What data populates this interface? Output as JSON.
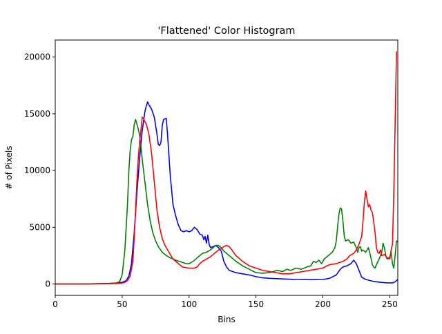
{
  "chart_data": {
    "type": "line",
    "title": "'Flattened' Color Histogram",
    "xlabel": "Bins",
    "ylabel": "# of Pixels",
    "xlim": [
      0,
      256
    ],
    "ylim": [
      -1000,
      21500
    ],
    "xticks": [
      0,
      50,
      100,
      150,
      200,
      250
    ],
    "yticks": [
      0,
      5000,
      10000,
      15000,
      20000
    ],
    "grid": false,
    "legend": "none",
    "series": [
      {
        "color": "#0000ff",
        "points": [
          [
            0,
            0
          ],
          [
            10,
            0
          ],
          [
            20,
            0
          ],
          [
            30,
            20
          ],
          [
            40,
            50
          ],
          [
            45,
            80
          ],
          [
            50,
            150
          ],
          [
            53,
            300
          ],
          [
            55,
            700
          ],
          [
            57,
            1800
          ],
          [
            59,
            4500
          ],
          [
            61,
            8000
          ],
          [
            63,
            11000
          ],
          [
            65,
            13500
          ],
          [
            67,
            15200
          ],
          [
            68,
            15700
          ],
          [
            69,
            16050
          ],
          [
            70,
            15800
          ],
          [
            72,
            15400
          ],
          [
            74,
            14700
          ],
          [
            76,
            13200
          ],
          [
            77,
            12300
          ],
          [
            78,
            12200
          ],
          [
            79,
            12500
          ],
          [
            80,
            14000
          ],
          [
            81,
            14500
          ],
          [
            83,
            14600
          ],
          [
            84,
            13000
          ],
          [
            86,
            9500
          ],
          [
            88,
            7000
          ],
          [
            90,
            6000
          ],
          [
            92,
            5200
          ],
          [
            94,
            4700
          ],
          [
            96,
            4600
          ],
          [
            98,
            4700
          ],
          [
            100,
            4600
          ],
          [
            102,
            4700
          ],
          [
            104,
            5000
          ],
          [
            106,
            4800
          ],
          [
            108,
            4400
          ],
          [
            110,
            4300
          ],
          [
            111,
            3900
          ],
          [
            112,
            4200
          ],
          [
            113,
            3600
          ],
          [
            114,
            4300
          ],
          [
            115,
            3500
          ],
          [
            116,
            3200
          ],
          [
            118,
            3300
          ],
          [
            120,
            3400
          ],
          [
            122,
            3200
          ],
          [
            124,
            2900
          ],
          [
            126,
            2000
          ],
          [
            128,
            1500
          ],
          [
            130,
            1200
          ],
          [
            135,
            1000
          ],
          [
            140,
            900
          ],
          [
            145,
            800
          ],
          [
            150,
            650
          ],
          [
            155,
            550
          ],
          [
            160,
            500
          ],
          [
            170,
            450
          ],
          [
            180,
            400
          ],
          [
            190,
            380
          ],
          [
            200,
            400
          ],
          [
            205,
            500
          ],
          [
            210,
            800
          ],
          [
            213,
            1300
          ],
          [
            215,
            1500
          ],
          [
            218,
            1600
          ],
          [
            221,
            1800
          ],
          [
            223,
            2100
          ],
          [
            225,
            1800
          ],
          [
            227,
            1200
          ],
          [
            229,
            600
          ],
          [
            232,
            400
          ],
          [
            237,
            250
          ],
          [
            243,
            150
          ],
          [
            248,
            100
          ],
          [
            252,
            100
          ],
          [
            254,
            200
          ],
          [
            256,
            400
          ]
        ]
      },
      {
        "color": "#008000",
        "points": [
          [
            0,
            0
          ],
          [
            10,
            0
          ],
          [
            20,
            0
          ],
          [
            30,
            20
          ],
          [
            40,
            40
          ],
          [
            45,
            80
          ],
          [
            48,
            200
          ],
          [
            50,
            800
          ],
          [
            52,
            3000
          ],
          [
            54,
            7000
          ],
          [
            55,
            10000
          ],
          [
            56,
            11800
          ],
          [
            57,
            12700
          ],
          [
            58,
            13000
          ],
          [
            59,
            14000
          ],
          [
            60,
            14500
          ],
          [
            61,
            14100
          ],
          [
            62,
            13700
          ],
          [
            63,
            13100
          ],
          [
            64,
            12200
          ],
          [
            65,
            11000
          ],
          [
            67,
            9000
          ],
          [
            69,
            7000
          ],
          [
            71,
            5500
          ],
          [
            73,
            4500
          ],
          [
            75,
            3800
          ],
          [
            77,
            3300
          ],
          [
            80,
            2800
          ],
          [
            83,
            2500
          ],
          [
            86,
            2300
          ],
          [
            90,
            2100
          ],
          [
            95,
            1900
          ],
          [
            98,
            1800
          ],
          [
            100,
            1800
          ],
          [
            103,
            2000
          ],
          [
            106,
            2300
          ],
          [
            108,
            2500
          ],
          [
            110,
            2700
          ],
          [
            113,
            2800
          ],
          [
            116,
            3000
          ],
          [
            118,
            3200
          ],
          [
            120,
            3400
          ],
          [
            122,
            3400
          ],
          [
            124,
            3200
          ],
          [
            126,
            2900
          ],
          [
            130,
            2500
          ],
          [
            135,
            2000
          ],
          [
            140,
            1600
          ],
          [
            145,
            1300
          ],
          [
            150,
            1000
          ],
          [
            155,
            950
          ],
          [
            160,
            1000
          ],
          [
            163,
            1100
          ],
          [
            166,
            1200
          ],
          [
            170,
            1100
          ],
          [
            173,
            1300
          ],
          [
            176,
            1200
          ],
          [
            180,
            1400
          ],
          [
            184,
            1300
          ],
          [
            188,
            1500
          ],
          [
            191,
            1600
          ],
          [
            193,
            2000
          ],
          [
            195,
            1900
          ],
          [
            197,
            2100
          ],
          [
            199,
            1800
          ],
          [
            201,
            2200
          ],
          [
            203,
            2400
          ],
          [
            205,
            2600
          ],
          [
            207,
            2800
          ],
          [
            209,
            3200
          ],
          [
            210,
            3800
          ],
          [
            211,
            5000
          ],
          [
            212,
            6200
          ],
          [
            213,
            6700
          ],
          [
            214,
            6600
          ],
          [
            215,
            5500
          ],
          [
            216,
            4200
          ],
          [
            217,
            3800
          ],
          [
            219,
            3900
          ],
          [
            221,
            3600
          ],
          [
            223,
            3700
          ],
          [
            225,
            3200
          ],
          [
            226,
            2800
          ],
          [
            227,
            3200
          ],
          [
            228,
            3300
          ],
          [
            229,
            2900
          ],
          [
            230,
            3000
          ],
          [
            232,
            2800
          ],
          [
            234,
            3200
          ],
          [
            235,
            2800
          ],
          [
            237,
            1700
          ],
          [
            238,
            1500
          ],
          [
            239,
            1400
          ],
          [
            240,
            1700
          ],
          [
            242,
            2200
          ],
          [
            244,
            2800
          ],
          [
            245,
            3600
          ],
          [
            246,
            3200
          ],
          [
            247,
            2500
          ],
          [
            248,
            2200
          ],
          [
            250,
            2400
          ],
          [
            251,
            2800
          ],
          [
            252,
            1800
          ],
          [
            253,
            1400
          ],
          [
            254,
            2500
          ],
          [
            255,
            3800
          ],
          [
            256,
            3700
          ]
        ]
      },
      {
        "color": "#ff0000",
        "points": [
          [
            0,
            0
          ],
          [
            10,
            0
          ],
          [
            20,
            0
          ],
          [
            30,
            10
          ],
          [
            40,
            20
          ],
          [
            45,
            40
          ],
          [
            50,
            80
          ],
          [
            52,
            150
          ],
          [
            54,
            300
          ],
          [
            56,
            700
          ],
          [
            58,
            2000
          ],
          [
            59,
            4000
          ],
          [
            60,
            6500
          ],
          [
            61,
            9000
          ],
          [
            62,
            11000
          ],
          [
            63,
            12500
          ],
          [
            64,
            13500
          ],
          [
            65,
            14700
          ],
          [
            66,
            14600
          ],
          [
            67,
            14300
          ],
          [
            68,
            14100
          ],
          [
            70,
            13200
          ],
          [
            72,
            11500
          ],
          [
            74,
            9000
          ],
          [
            76,
            6500
          ],
          [
            78,
            5000
          ],
          [
            80,
            4000
          ],
          [
            82,
            3400
          ],
          [
            85,
            2800
          ],
          [
            88,
            2200
          ],
          [
            92,
            1800
          ],
          [
            95,
            1500
          ],
          [
            100,
            1400
          ],
          [
            104,
            1400
          ],
          [
            106,
            1500
          ],
          [
            108,
            1800
          ],
          [
            110,
            2000
          ],
          [
            113,
            2200
          ],
          [
            116,
            2400
          ],
          [
            118,
            2600
          ],
          [
            120,
            2800
          ],
          [
            122,
            3000
          ],
          [
            124,
            3100
          ],
          [
            126,
            3300
          ],
          [
            128,
            3400
          ],
          [
            130,
            3300
          ],
          [
            132,
            3000
          ],
          [
            135,
            2500
          ],
          [
            140,
            2000
          ],
          [
            145,
            1600
          ],
          [
            150,
            1400
          ],
          [
            155,
            1200
          ],
          [
            160,
            1100
          ],
          [
            165,
            1000
          ],
          [
            170,
            900
          ],
          [
            175,
            900
          ],
          [
            180,
            1000
          ],
          [
            185,
            1100
          ],
          [
            190,
            1200
          ],
          [
            195,
            1300
          ],
          [
            200,
            1400
          ],
          [
            203,
            1600
          ],
          [
            205,
            1700
          ],
          [
            210,
            1800
          ],
          [
            215,
            2000
          ],
          [
            218,
            2200
          ],
          [
            220,
            2500
          ],
          [
            223,
            2700
          ],
          [
            225,
            3000
          ],
          [
            227,
            3500
          ],
          [
            229,
            4200
          ],
          [
            230,
            5500
          ],
          [
            231,
            7200
          ],
          [
            232,
            8200
          ],
          [
            233,
            7500
          ],
          [
            234,
            6800
          ],
          [
            235,
            7000
          ],
          [
            236,
            6500
          ],
          [
            237,
            6300
          ],
          [
            238,
            5500
          ],
          [
            239,
            4500
          ],
          [
            240,
            3200
          ],
          [
            241,
            2800
          ],
          [
            242,
            2700
          ],
          [
            243,
            3000
          ],
          [
            244,
            2500
          ],
          [
            246,
            2600
          ],
          [
            248,
            2300
          ],
          [
            250,
            2200
          ],
          [
            251,
            3000
          ],
          [
            252,
            3500
          ],
          [
            253,
            8000
          ],
          [
            254,
            14000
          ],
          [
            255,
            20500
          ]
        ]
      }
    ]
  }
}
